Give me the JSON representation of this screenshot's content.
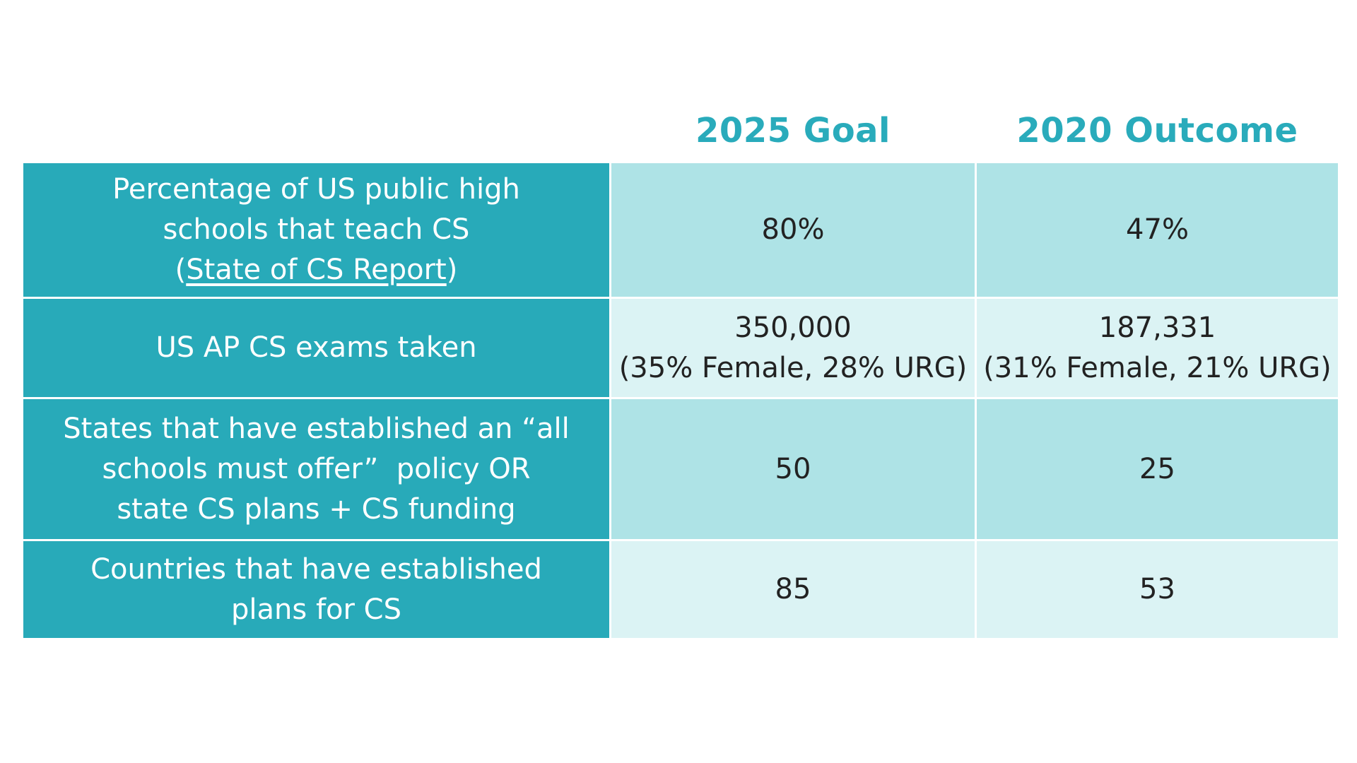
{
  "headers": {
    "goal": "2025 Goal",
    "outcome": "2020 Outcome"
  },
  "rows": [
    {
      "label_lines": [
        "Percentage of US public high",
        "schools that teach CS"
      ],
      "label_link_prefix": "(",
      "label_link": "State of CS Report",
      "label_link_suffix": ")",
      "goal_lines": [
        "80%"
      ],
      "outcome_lines": [
        "47%"
      ]
    },
    {
      "label_lines": [
        "US AP CS exams taken"
      ],
      "goal_lines": [
        "350,000",
        "(35% Female, 28% URG)"
      ],
      "outcome_lines": [
        "187,331",
        "(31% Female, 21% URG)"
      ]
    },
    {
      "label_lines": [
        "States that have established an “all",
        "schools must offer”  policy OR",
        "state CS plans + CS funding"
      ],
      "goal_lines": [
        "50"
      ],
      "outcome_lines": [
        "25"
      ]
    },
    {
      "label_lines": [
        "Countries that have established",
        "plans for CS"
      ],
      "goal_lines": [
        "85"
      ],
      "outcome_lines": [
        "53"
      ]
    }
  ],
  "colors": {
    "header_text": "#29abbb",
    "label_bg": "#28aab9",
    "value_bg_dark": "#aee3e6",
    "value_bg_light": "#dbf3f4"
  }
}
